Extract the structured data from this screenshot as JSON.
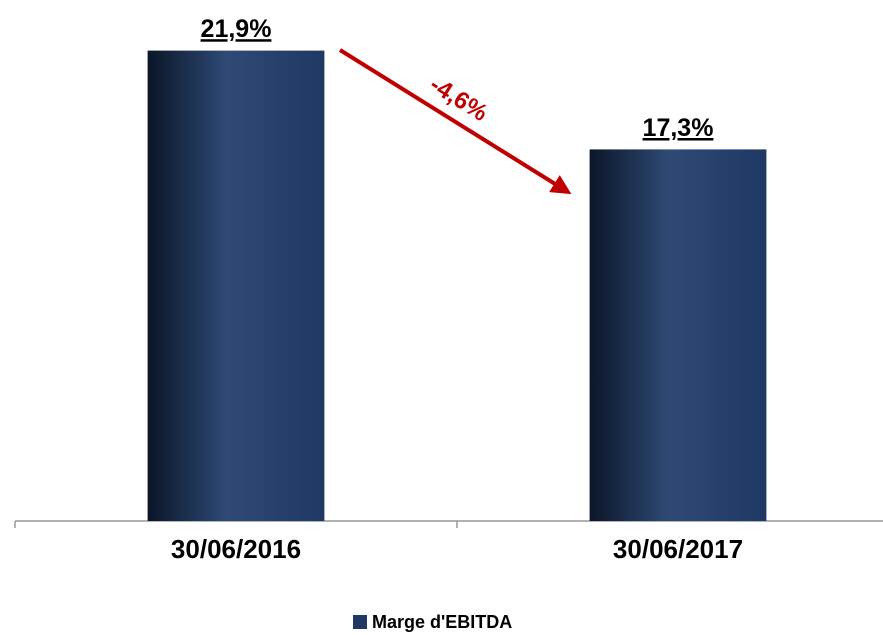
{
  "chart_data": {
    "type": "bar",
    "categories": [
      "30/06/2016",
      "30/06/2017"
    ],
    "series": [
      {
        "name": "Marge d'EBITDA",
        "color": "#1f3864",
        "values": [
          21.9,
          17.3
        ],
        "value_labels": [
          "21,9%",
          "17,3%"
        ]
      }
    ],
    "annotation": "-4,6%",
    "ylim": [
      0,
      24
    ],
    "legend": "bottom"
  }
}
